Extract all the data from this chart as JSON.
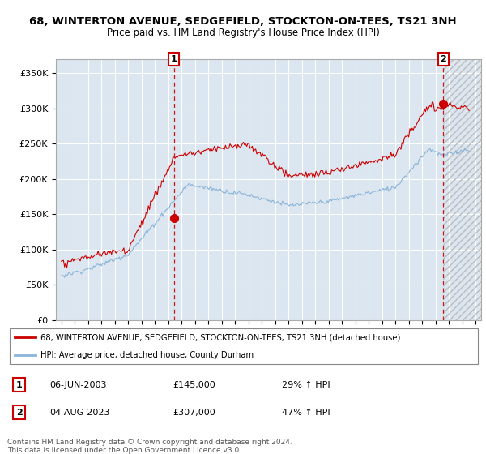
{
  "title1": "68, WINTERTON AVENUE, SEDGEFIELD, STOCKTON-ON-TEES, TS21 3NH",
  "title2": "Price paid vs. HM Land Registry's House Price Index (HPI)",
  "legend_line1": "68, WINTERTON AVENUE, SEDGEFIELD, STOCKTON-ON-TEES, TS21 3NH (detached house)",
  "legend_line2": "HPI: Average price, detached house, County Durham",
  "annotation1_date": "06-JUN-2003",
  "annotation1_price": "£145,000",
  "annotation1_hpi": "29% ↑ HPI",
  "annotation2_date": "04-AUG-2023",
  "annotation2_price": "£307,000",
  "annotation2_hpi": "47% ↑ HPI",
  "footer": "Contains HM Land Registry data © Crown copyright and database right 2024.\nThis data is licensed under the Open Government Licence v3.0.",
  "red_color": "#cc0000",
  "blue_color": "#8ab4d8",
  "bg_color": "#dce6f0",
  "annotation_box_color": "#cc0000",
  "ylim": [
    0,
    370000
  ],
  "yticks": [
    0,
    50000,
    100000,
    150000,
    200000,
    250000,
    300000,
    350000
  ],
  "ytick_labels": [
    "£0",
    "£50K",
    "£100K",
    "£150K",
    "£200K",
    "£250K",
    "£300K",
    "£350K"
  ],
  "sale1_x": 2003.42,
  "sale1_y": 145000,
  "sale2_x": 2023.58,
  "sale2_y": 307000,
  "xmin": 1994.6,
  "xmax": 2026.4
}
